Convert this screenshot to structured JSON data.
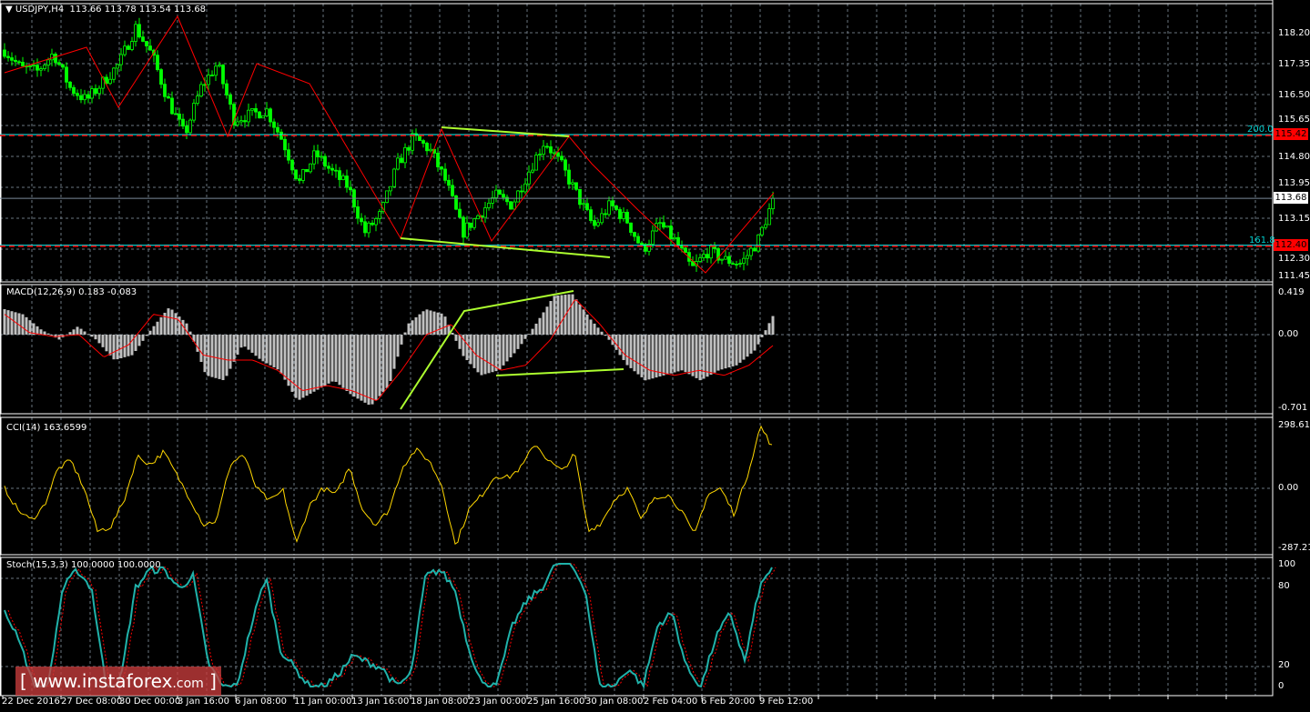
{
  "header": {
    "symbol": "USDJPY,H4",
    "ohlc": "113.66 113.78 113.54 113.68"
  },
  "price_axis": [
    "118.20",
    "117.35",
    "116.50",
    "115.65",
    "114.80",
    "113.95",
    "113.15",
    "112.30",
    "111.45"
  ],
  "levels": {
    "upper": {
      "value": "115.42",
      "fib": "200.0"
    },
    "lower": {
      "value": "112.40",
      "fib": "161.8"
    },
    "current": "113.68"
  },
  "time_axis": [
    "22 Dec 2016",
    "27 Dec 08:00",
    "30 Dec 00:00",
    "3 Jan 16:00",
    "6 Jan 08:00",
    "11 Jan 00:00",
    "13 Jan 16:00",
    "18 Jan 08:00",
    "23 Jan 00:00",
    "25 Jan 16:00",
    "30 Jan 08:00",
    "2 Feb 04:00",
    "6 Feb 20:00",
    "9 Feb 12:00"
  ],
  "macd": {
    "label": "MACD(12,26,9) 0.183 -0.083",
    "axis": [
      "0.419",
      "0.00",
      "-0.701"
    ]
  },
  "cci": {
    "label": "CCI(14) 163.6599",
    "axis": [
      "298.617",
      "0.00",
      "-287.212"
    ]
  },
  "stoch": {
    "label": "Stoch(15,3,3) 100.0000 100.0000",
    "axis": [
      "100",
      "80",
      "20",
      "0"
    ]
  },
  "watermark": {
    "text": "www.instaforex",
    "suffix": ".com"
  },
  "colors": {
    "bull": "#00ff00",
    "bear": "#00ff00",
    "zigzag": "#ff0000",
    "trend": "#adff2f",
    "cci": "#ffd700",
    "stoch_main": "#20b2aa",
    "stoch_signal": "#ff0000",
    "macd_hist": "#c0c0c0",
    "macd_signal": "#ff0000",
    "level_tag": "#ff0000",
    "fib": "#00ffff"
  },
  "chart_data": [
    {
      "type": "candlestick",
      "title": "USDJPY,H4",
      "ylim": [
        111.45,
        118.2
      ],
      "grid": true,
      "price_path": [
        117.73,
        117.23,
        117.15,
        117.65,
        116.7,
        116.35,
        116.85,
        117.35,
        118.35,
        117.6,
        116.35,
        115.4,
        116.7,
        117.35,
        115.85,
        115.95,
        116.1,
        115.25,
        114.1,
        114.9,
        114.4,
        114.0,
        112.75,
        113.25,
        114.6,
        115.35,
        115.0,
        114.1,
        112.75,
        113.25,
        113.75,
        113.5,
        114.4,
        115.25,
        114.6,
        113.75,
        112.9,
        113.5,
        113.1,
        112.25,
        113.0,
        112.5,
        111.75,
        112.25,
        112.0,
        111.9,
        112.5,
        113.68
      ]
    },
    {
      "type": "bar",
      "title": "MACD(12,26,9)",
      "ylim": [
        -0.701,
        0.419
      ],
      "histogram": [
        0.25,
        0.2,
        0.05,
        -0.05,
        0.08,
        -0.05,
        -0.25,
        -0.2,
        0.05,
        0.27,
        0.1,
        -0.4,
        -0.45,
        -0.1,
        -0.25,
        -0.35,
        -0.65,
        -0.55,
        -0.45,
        -0.6,
        -0.7,
        -0.5,
        0.1,
        0.25,
        0.2,
        -0.2,
        -0.4,
        -0.35,
        -0.15,
        0.1,
        0.38,
        0.4,
        0.15,
        -0.05,
        -0.3,
        -0.45,
        -0.4,
        -0.35,
        -0.45,
        -0.35,
        -0.3,
        -0.15,
        0.2
      ],
      "signal": [
        0.2,
        0.02,
        -0.02,
        0.0,
        -0.22,
        -0.1,
        0.2,
        0.15,
        -0.2,
        -0.25,
        -0.25,
        -0.35,
        -0.55,
        -0.5,
        -0.55,
        -0.65,
        -0.35,
        0.0,
        0.1,
        -0.2,
        -0.35,
        -0.3,
        -0.05,
        0.35,
        0.1,
        -0.2,
        -0.35,
        -0.4,
        -0.35,
        -0.4,
        -0.3,
        -0.1
      ]
    },
    {
      "type": "line",
      "title": "CCI(14)",
      "ylim": [
        -287.212,
        298.617
      ],
      "values": [
        0,
        -100,
        -150,
        -80,
        90,
        130,
        0,
        -200,
        -180,
        -60,
        150,
        110,
        170,
        60,
        -50,
        -170,
        -150,
        110,
        160,
        0,
        -60,
        -10,
        -260,
        -80,
        0,
        -30,
        100,
        -100,
        -170,
        -100,
        100,
        180,
        130,
        10,
        -270,
        -100,
        -30,
        60,
        50,
        100,
        210,
        130,
        80,
        160,
        -200,
        -160,
        -50,
        0,
        -150,
        -40,
        -30,
        -100,
        -220,
        -30,
        0,
        -120,
        60,
        290,
        180
      ]
    },
    {
      "type": "line",
      "title": "Stoch(15,3,3)",
      "ylim": [
        0,
        100
      ],
      "values": [
        60,
        40,
        0,
        0,
        80,
        95,
        80,
        0,
        5,
        80,
        95,
        95,
        80,
        90,
        20,
        0,
        0,
        50,
        90,
        30,
        15,
        0,
        0,
        10,
        25,
        20,
        15,
        0,
        10,
        90,
        95,
        80,
        30,
        0,
        5,
        50,
        70,
        80,
        100,
        100,
        80,
        0,
        0,
        15,
        0,
        50,
        60,
        15,
        0,
        40,
        60,
        20,
        80,
        100
      ]
    }
  ]
}
